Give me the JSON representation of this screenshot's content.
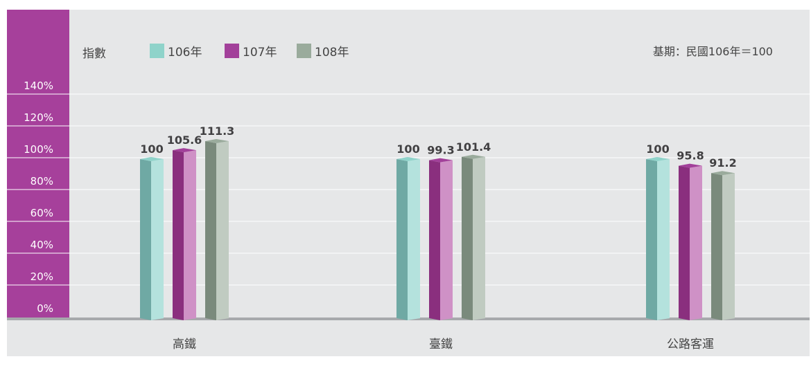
{
  "chart_data": {
    "type": "bar",
    "ylabel": "指數",
    "note": "基期：民國106年＝100",
    "y_ticks": [
      "0%",
      "20%",
      "40%",
      "60%",
      "80%",
      "100%",
      "120%",
      "140%"
    ],
    "ylim": [
      0,
      140
    ],
    "grid": true,
    "legend_position": "top-left",
    "categories": [
      "高鐵",
      "臺鐵",
      "公路客運"
    ],
    "series": [
      {
        "name": "106年",
        "values": [
          100,
          100,
          100
        ],
        "color": "#8fd3ca"
      },
      {
        "name": "107年",
        "values": [
          105.6,
          99.3,
          95.8
        ],
        "color": "#a2409a"
      },
      {
        "name": "108年",
        "values": [
          111.3,
          101.4,
          91.2
        ],
        "color": "#9aab9c"
      }
    ],
    "colors": {
      "axis_bg": "#a6409b",
      "plot_bg": "#e6e7e8",
      "baseline": "#a7a9ac"
    }
  }
}
